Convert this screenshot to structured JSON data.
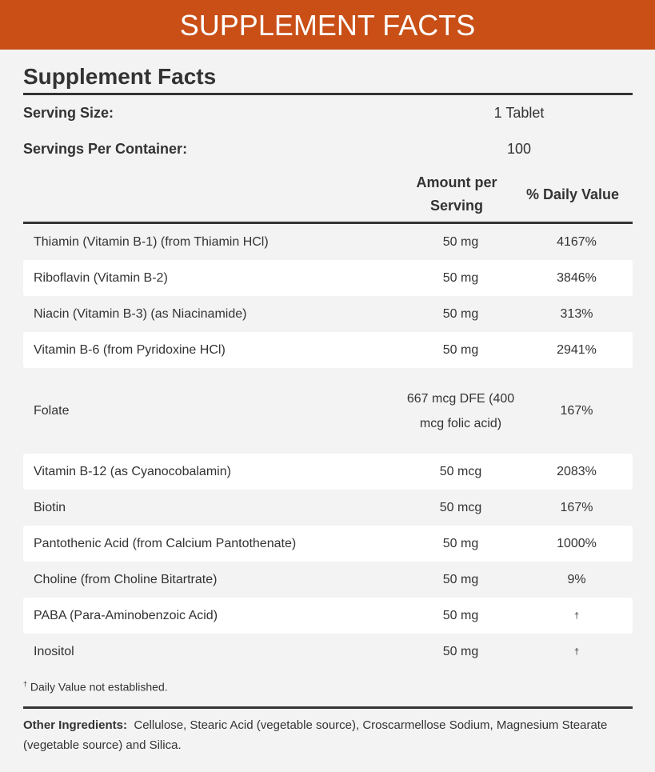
{
  "banner": "SUPPLEMENT FACTS",
  "title": "Supplement Facts",
  "serving_size": {
    "label": "Serving Size:",
    "value": "1 Tablet"
  },
  "servings_per_container": {
    "label": "Servings Per Container:",
    "value": "100"
  },
  "columns": {
    "amount_line1": "Amount per",
    "amount_line2": "Serving",
    "daily_value": "% Daily Value"
  },
  "rows": [
    {
      "name": "Thiamin (Vitamin B-1) (from Thiamin HCl)",
      "amount": "50 mg",
      "dv": "4167%"
    },
    {
      "name": "Riboflavin (Vitamin B-2)",
      "amount": "50 mg",
      "dv": "3846%"
    },
    {
      "name": "Niacin (Vitamin B-3) (as Niacinamide)",
      "amount": "50 mg",
      "dv": "313%"
    },
    {
      "name": "Vitamin B-6 (from Pyridoxine HCl)",
      "amount": "50 mg",
      "dv": "2941%"
    },
    {
      "name": "Folate",
      "amount": "667 mcg DFE (400 mcg folic acid)",
      "dv": "167%"
    },
    {
      "name": "Vitamin B-12 (as Cyanocobalamin)",
      "amount": "50 mcg",
      "dv": "2083%"
    },
    {
      "name": "Biotin",
      "amount": "50 mcg",
      "dv": "167%"
    },
    {
      "name": "Pantothenic Acid (from Calcium Pantothenate)",
      "amount": "50 mg",
      "dv": "1000%"
    },
    {
      "name": "Choline (from Choline Bitartrate)",
      "amount": "50 mg",
      "dv": "9%"
    },
    {
      "name": "PABA (Para-Aminobenzoic Acid)",
      "amount": "50 mg",
      "dv": "†"
    },
    {
      "name": "Inositol",
      "amount": "50 mg",
      "dv": "†"
    }
  ],
  "footnote": {
    "mark": "†",
    "text": "Daily Value not established."
  },
  "other_ingredients": {
    "label": "Other Ingredients:",
    "text": "Cellulose, Stearic Acid (vegetable source), Croscarmellose Sodium, Magnesium Stearate (vegetable source) and Silica."
  },
  "colors": {
    "banner": "#c94f17",
    "background": "#f3f3f3",
    "rule": "#333333"
  }
}
